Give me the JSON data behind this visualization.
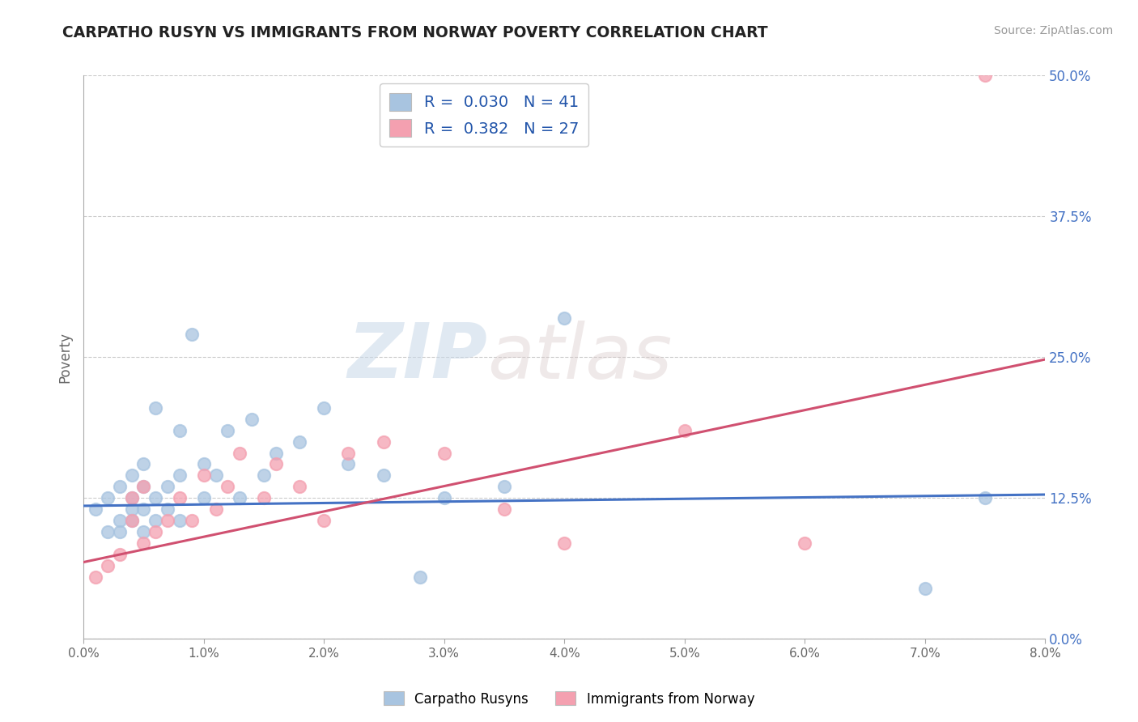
{
  "title": "CARPATHO RUSYN VS IMMIGRANTS FROM NORWAY POVERTY CORRELATION CHART",
  "source": "Source: ZipAtlas.com",
  "ylabel": "Poverty",
  "xlim": [
    0.0,
    0.08
  ],
  "ylim": [
    0.0,
    0.5
  ],
  "xticks": [
    0.0,
    0.01,
    0.02,
    0.03,
    0.04,
    0.05,
    0.06,
    0.07,
    0.08
  ],
  "xtick_labels": [
    "0.0%",
    "1.0%",
    "2.0%",
    "3.0%",
    "4.0%",
    "5.0%",
    "6.0%",
    "7.0%",
    "8.0%"
  ],
  "yticks": [
    0.0,
    0.125,
    0.25,
    0.375,
    0.5
  ],
  "ytick_labels": [
    "0.0%",
    "12.5%",
    "25.0%",
    "37.5%",
    "50.0%"
  ],
  "blue_R": 0.03,
  "blue_N": 41,
  "pink_R": 0.382,
  "pink_N": 27,
  "blue_color": "#a8c4e0",
  "pink_color": "#f4a0b0",
  "blue_line_color": "#4472c4",
  "pink_line_color": "#d05070",
  "legend_text_color": "#2255aa",
  "watermark_text": "ZIPatlas",
  "watermark_color": "#d0dce8",
  "legend_label_blue": "Carpatho Rusyns",
  "legend_label_pink": "Immigrants from Norway",
  "blue_scatter_x": [
    0.001,
    0.002,
    0.002,
    0.003,
    0.003,
    0.003,
    0.004,
    0.004,
    0.004,
    0.004,
    0.005,
    0.005,
    0.005,
    0.005,
    0.006,
    0.006,
    0.006,
    0.007,
    0.007,
    0.008,
    0.008,
    0.008,
    0.009,
    0.01,
    0.01,
    0.011,
    0.012,
    0.013,
    0.014,
    0.015,
    0.016,
    0.018,
    0.02,
    0.022,
    0.025,
    0.028,
    0.03,
    0.035,
    0.04,
    0.07,
    0.075
  ],
  "blue_scatter_y": [
    0.115,
    0.095,
    0.125,
    0.105,
    0.095,
    0.135,
    0.115,
    0.105,
    0.125,
    0.145,
    0.095,
    0.115,
    0.135,
    0.155,
    0.105,
    0.125,
    0.205,
    0.115,
    0.135,
    0.105,
    0.145,
    0.185,
    0.27,
    0.125,
    0.155,
    0.145,
    0.185,
    0.125,
    0.195,
    0.145,
    0.165,
    0.175,
    0.205,
    0.155,
    0.145,
    0.055,
    0.125,
    0.135,
    0.285,
    0.045,
    0.125
  ],
  "pink_scatter_x": [
    0.001,
    0.002,
    0.003,
    0.004,
    0.004,
    0.005,
    0.005,
    0.006,
    0.007,
    0.008,
    0.009,
    0.01,
    0.011,
    0.012,
    0.013,
    0.015,
    0.016,
    0.018,
    0.02,
    0.022,
    0.025,
    0.03,
    0.035,
    0.04,
    0.05,
    0.06,
    0.075
  ],
  "pink_scatter_y": [
    0.055,
    0.065,
    0.075,
    0.105,
    0.125,
    0.085,
    0.135,
    0.095,
    0.105,
    0.125,
    0.105,
    0.145,
    0.115,
    0.135,
    0.165,
    0.125,
    0.155,
    0.135,
    0.105,
    0.165,
    0.175,
    0.165,
    0.115,
    0.085,
    0.185,
    0.085,
    0.5
  ],
  "blue_line_x": [
    0.0,
    0.08
  ],
  "blue_line_y": [
    0.118,
    0.128
  ],
  "pink_line_x": [
    0.0,
    0.08
  ],
  "pink_line_y": [
    0.068,
    0.248
  ]
}
